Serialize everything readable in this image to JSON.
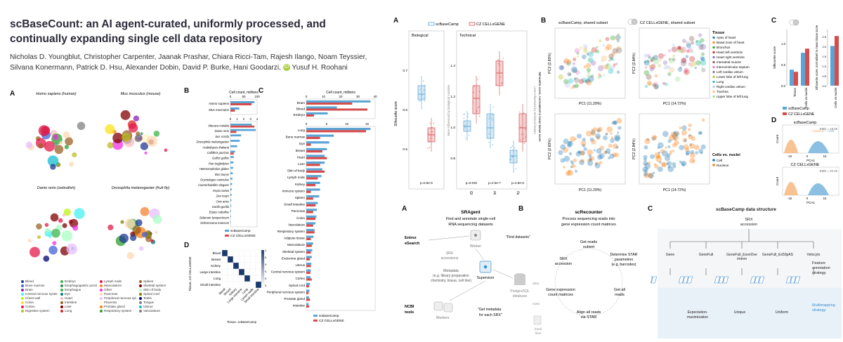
{
  "paper": {
    "title": "scBaseCount: an AI agent-curated, uniformly processed, and continually expanding single cell data repository",
    "authors_line1": "Nicholas D. Youngblut, Christopher Carpenter, Jaanak Prashar, Chiara Ricci-Tam, Rajesh Ilango, Noam Teyssier,",
    "authors_line2": "Silvana Konermann, Patrick D. Hsu, Alexander Dobin, David P. Burke, Hani Goodarzi,",
    "authors_last": "Yusuf H. Roohani",
    "orcid_mark": "iD"
  },
  "fig_left": {
    "letters": {
      "A": "A",
      "B": "B",
      "C": "C",
      "D": "D"
    },
    "umap_titles": [
      "Homo sapiens (human)",
      "Mus musculus (mouse)",
      "Danio rerio (zebrafish)",
      "Drosophila melanogaster (fruit fly)"
    ],
    "umap_legend": [
      {
        "label": "Blood",
        "color": "#1f3a93"
      },
      {
        "label": "Embryo",
        "color": "#3cb44b"
      },
      {
        "label": "Lymph node",
        "color": "#e6194b"
      },
      {
        "label": "Spleen",
        "color": "#9a6324"
      },
      {
        "label": "Bone marrow",
        "color": "#4363d8"
      },
      {
        "label": "Esophagogastric junction",
        "color": "#2e8b57"
      },
      {
        "label": "Musculature",
        "color": "#f58231"
      },
      {
        "label": "Skeletal system",
        "color": "#800000"
      },
      {
        "label": "Brain",
        "color": "#911eb4"
      },
      {
        "label": "Esophagus",
        "color": "#3cb44b"
      },
      {
        "label": "Other",
        "color": "#f032e6"
      },
      {
        "label": "Skin of body",
        "color": "#aaffc3"
      },
      {
        "label": "Central nervous system",
        "color": "#46f0f0"
      },
      {
        "label": "Eye",
        "color": "#008080"
      },
      {
        "label": "Pancreas",
        "color": "#ffd8b1"
      },
      {
        "label": "Spinal cord",
        "color": "#808000"
      },
      {
        "label": "Chest wall",
        "color": "#bcf60c"
      },
      {
        "label": "Heart",
        "color": "#fabebe"
      },
      {
        "label": "Peripheral nervous system",
        "color": "#e6beff"
      },
      {
        "label": "Testis",
        "color": "#000075"
      },
      {
        "label": "Colon",
        "color": "#ffe119"
      },
      {
        "label": "Intestine",
        "color": "#9a6324"
      },
      {
        "label": "Placenta",
        "color": "#fffac8"
      },
      {
        "label": "Tongue",
        "color": "#808080"
      },
      {
        "label": "Cortex",
        "color": "#e6194b"
      },
      {
        "label": "Liver",
        "color": "#800000"
      },
      {
        "label": "Prostate gland",
        "color": "#ff7f0e"
      },
      {
        "label": "Uterus",
        "color": "#17becf"
      },
      {
        "label": "Digestive system",
        "color": "#bcbd22"
      },
      {
        "label": "Lung",
        "color": "#d62728"
      },
      {
        "label": "Respiratory system",
        "color": "#2ca02c"
      },
      {
        "label": "Vasculature",
        "color": "#7f7f7f"
      }
    ],
    "panel_b": {
      "xlabel": "Cell count, millions",
      "top_ticks": [
        "0",
        "50",
        "100"
      ],
      "bottom_ticks": [
        "0",
        "1",
        "2",
        "3",
        "4"
      ],
      "legend": [
        "scBaseCamp",
        "CZ CELLxGENE"
      ],
      "top_species": [
        "Homo sapiens",
        "Mus musculus"
      ],
      "species": [
        "Macaca mulatta",
        "Danio rerio",
        "Sus scrofa",
        "Drosophila melanogaster",
        "Arabidopsis thaliana",
        "Callithrix jacchus",
        "Gallus gallus",
        "Pan troglodytes",
        "Heterocephalus glaber",
        "Bos taurus",
        "Oryctolagus cuniculus",
        "Caenorhabditis elegans",
        "Oryza sativa",
        "Zea mays",
        "Ovis aries",
        "Gorilla gorilla",
        "Equus caballus",
        "Solanum lycopersicum",
        "Schistosoma mansoni"
      ]
    },
    "panel_c": {
      "xlabel": "Cell count, millions",
      "top_ticks": [
        "0",
        "10",
        "20",
        "30",
        "40"
      ],
      "bottom_ticks": [
        "0",
        "5",
        "10",
        "15"
      ],
      "legend": [
        "scBaseCamp",
        "CZ CELLxGENE"
      ],
      "top_tissues": [
        "Brain",
        "Blood",
        "Embryo"
      ],
      "tissues": [
        "Lung",
        "Bone marrow",
        "Eye",
        "Breast",
        "Heart",
        "Liver",
        "Skin of body",
        "Lymph node",
        "Kidney",
        "Immune system",
        "Spleen",
        "Small intestine",
        "Pancreas",
        "Colon",
        "Vasculature",
        "Respiratory system",
        "Adipose tissue",
        "Musculature",
        "Skeletal system",
        "Endocrine gland",
        "Uterus",
        "Central nervous system",
        "Cortex",
        "Spinal cord",
        "Peripheral nervous system",
        "Prostate gland",
        "Intestine"
      ]
    },
    "panel_d": {
      "ylabel": "Tissue, CZ CELLxGENE",
      "xlabel": "Tissue, scBaseCamp",
      "rows": [
        "Blood",
        "Breast",
        "Kidney",
        "Large intestine",
        "Lung",
        "Small intestine"
      ],
      "cols": [
        "Blood",
        "Breast",
        "Kidney",
        "Large intestine",
        "Lung",
        "Lymph node",
        "Small intestine"
      ],
      "scale_ticks": [
        "1.0",
        "0.8",
        "0.6",
        "0.4",
        "0.2",
        "0.0"
      ]
    }
  },
  "fig_right_top": {
    "letters": {
      "A": "A",
      "B": "B",
      "C": "C",
      "D": "D"
    },
    "legend": [
      "scBaseCamp",
      "CZ CELLxGENE"
    ],
    "panel_a": {
      "ylabel_left": "Silhouette score",
      "ylabel_right": "Silhouette score, normalized to mean tissue score",
      "group_biological": "Biological",
      "group_technical": "Technical",
      "left_ticks": [
        "0.5",
        "0.6",
        "0.7"
      ],
      "right_ticks": [
        "0.8",
        "1.0",
        "1.2",
        "1.4"
      ],
      "arrow_bio": "More influenced by biological variation",
      "arrow_tech": "Less influenced by technical factors",
      "cats_left": [
        "Tissue"
      ],
      "cats_right": [
        "Sample ID",
        "Cells vs. nuclei",
        "Library preparation chemistry"
      ],
      "pvals": [
        "p=5.9e-5",
        "p=0.032",
        "p=2.6e-7",
        "p=2.8e-6"
      ]
    },
    "panel_b": {
      "title_left": "scBaseCamp, shared subset",
      "title_right": "CZ CELLxGENE, shared subset",
      "pc1_left": "PC1 (11.29%)",
      "pc1_right": "PC1 (14.72%)",
      "pc2_left": "PC2 (2.83%)",
      "pc2_right": "PC2 (2.84%)",
      "legend_title_tissue": "Tissue",
      "tissue_legend": [
        {
          "label": "Apex of heart",
          "color": "#1f77b4"
        },
        {
          "label": "Basal zone of heart",
          "color": "#ff7f0e"
        },
        {
          "label": "Bronchus",
          "color": "#2ca02c"
        },
        {
          "label": "Heart left ventricle",
          "color": "#d62728"
        },
        {
          "label": "Heart right ventricle",
          "color": "#9467bd"
        },
        {
          "label": "Interatrial muscle",
          "color": "#8c564b"
        },
        {
          "label": "Interventricular septum",
          "color": "#e377c2"
        },
        {
          "label": "Left cardiac atrium",
          "color": "#7f7f7f"
        },
        {
          "label": "Lower lobe of left lung",
          "color": "#bcbd22"
        },
        {
          "label": "Lung",
          "color": "#17becf"
        },
        {
          "label": "Right cardiac atrium",
          "color": "#aec7e8"
        },
        {
          "label": "Trachea",
          "color": "#ffbb78"
        },
        {
          "label": "Upper lobe of left lung",
          "color": "#98df8a"
        }
      ],
      "legend_title_cells": "Cells vs. nuclei",
      "cells_legend": [
        {
          "label": "Cell",
          "color": "#1f77b4"
        },
        {
          "label": "Nucleus",
          "color": "#ff7f0e"
        }
      ]
    },
    "panel_c": {
      "ylabel_left": "Silhouette score",
      "ylabel_right": "Silhouette score, normalized to mean tissue score",
      "cats_left": [
        "Tissue",
        "Cells vs nuclei"
      ],
      "cats_right": [
        "Cells vs nuclei"
      ],
      "left_ticks": [
        "0.0",
        "0.5",
        "1.0"
      ],
      "right_ticks": [
        "0.0",
        "0.5",
        "1.0",
        "1.5",
        "2.0",
        "2.5"
      ],
      "legend": [
        "scBaseCamp",
        "CZ CELLxGENE"
      ]
    },
    "panel_d": {
      "title_top": "scBaseCamp",
      "title_bottom": "CZ CELLxGENE",
      "emd_top": "EMD = 18.06",
      "emd_bottom": "EMD = 22.25",
      "legend": [
        "Nucleus",
        "Cell"
      ],
      "ylabel": "Count",
      "xlabel": "PCA1",
      "ticks": [
        "-15",
        "0",
        "15"
      ]
    }
  },
  "fig_right_bottom": {
    "letters": {
      "A": "A",
      "B": "B",
      "C": "C"
    },
    "panel_a": {
      "title": "SRAgent",
      "subtitle": "Find and annotate single-cell RNA sequencing datasets",
      "entrez": "Entrez eSearch",
      "worker": "Worker",
      "find_datasets": "\"Find datasets\"",
      "srx": "SRX accessions",
      "metadata": "Metadata (e.g. library preparation chemistry, tissue, cell line)",
      "supervisor": "Supervisor",
      "ncbi": "NCBI tools",
      "workers": "Workers",
      "get_metadata": "\"Get metadata for each SRX\"",
      "postgres": "PostgreSQL database",
      "data_label": "data",
      "stats_label": "stats",
      "h5ad": "h5ad files"
    },
    "panel_b": {
      "title": "scRecounter",
      "subtitle": "Process sequencing reads into gene expression count matrices",
      "srx": "SRX accession",
      "get_subset": "Get reads subset",
      "star_params": "Determine STAR parameters (e.g. barcodes)",
      "get_all": "Get all reads",
      "align": "Align all reads via STAR",
      "gem": "Gene expression count matrices"
    },
    "panel_c": {
      "title": "scBaseCamp data structure",
      "srx": "SRX accession",
      "features": [
        "Gene",
        "GeneFull",
        "GeneFull_ExonOverIntron",
        "GeneFull_Ex50pAS",
        "Velocyto"
      ],
      "feature_label": "Feature annotation strategy",
      "multimap": [
        "Expectation-maximization",
        "Unique",
        "Uniform"
      ],
      "multimap_label": "Multimapping strategy"
    }
  },
  "colors": {
    "scbase": "#5aa5d6",
    "czc": "#d64c4c",
    "accent_blue": "#3b8fcc"
  }
}
